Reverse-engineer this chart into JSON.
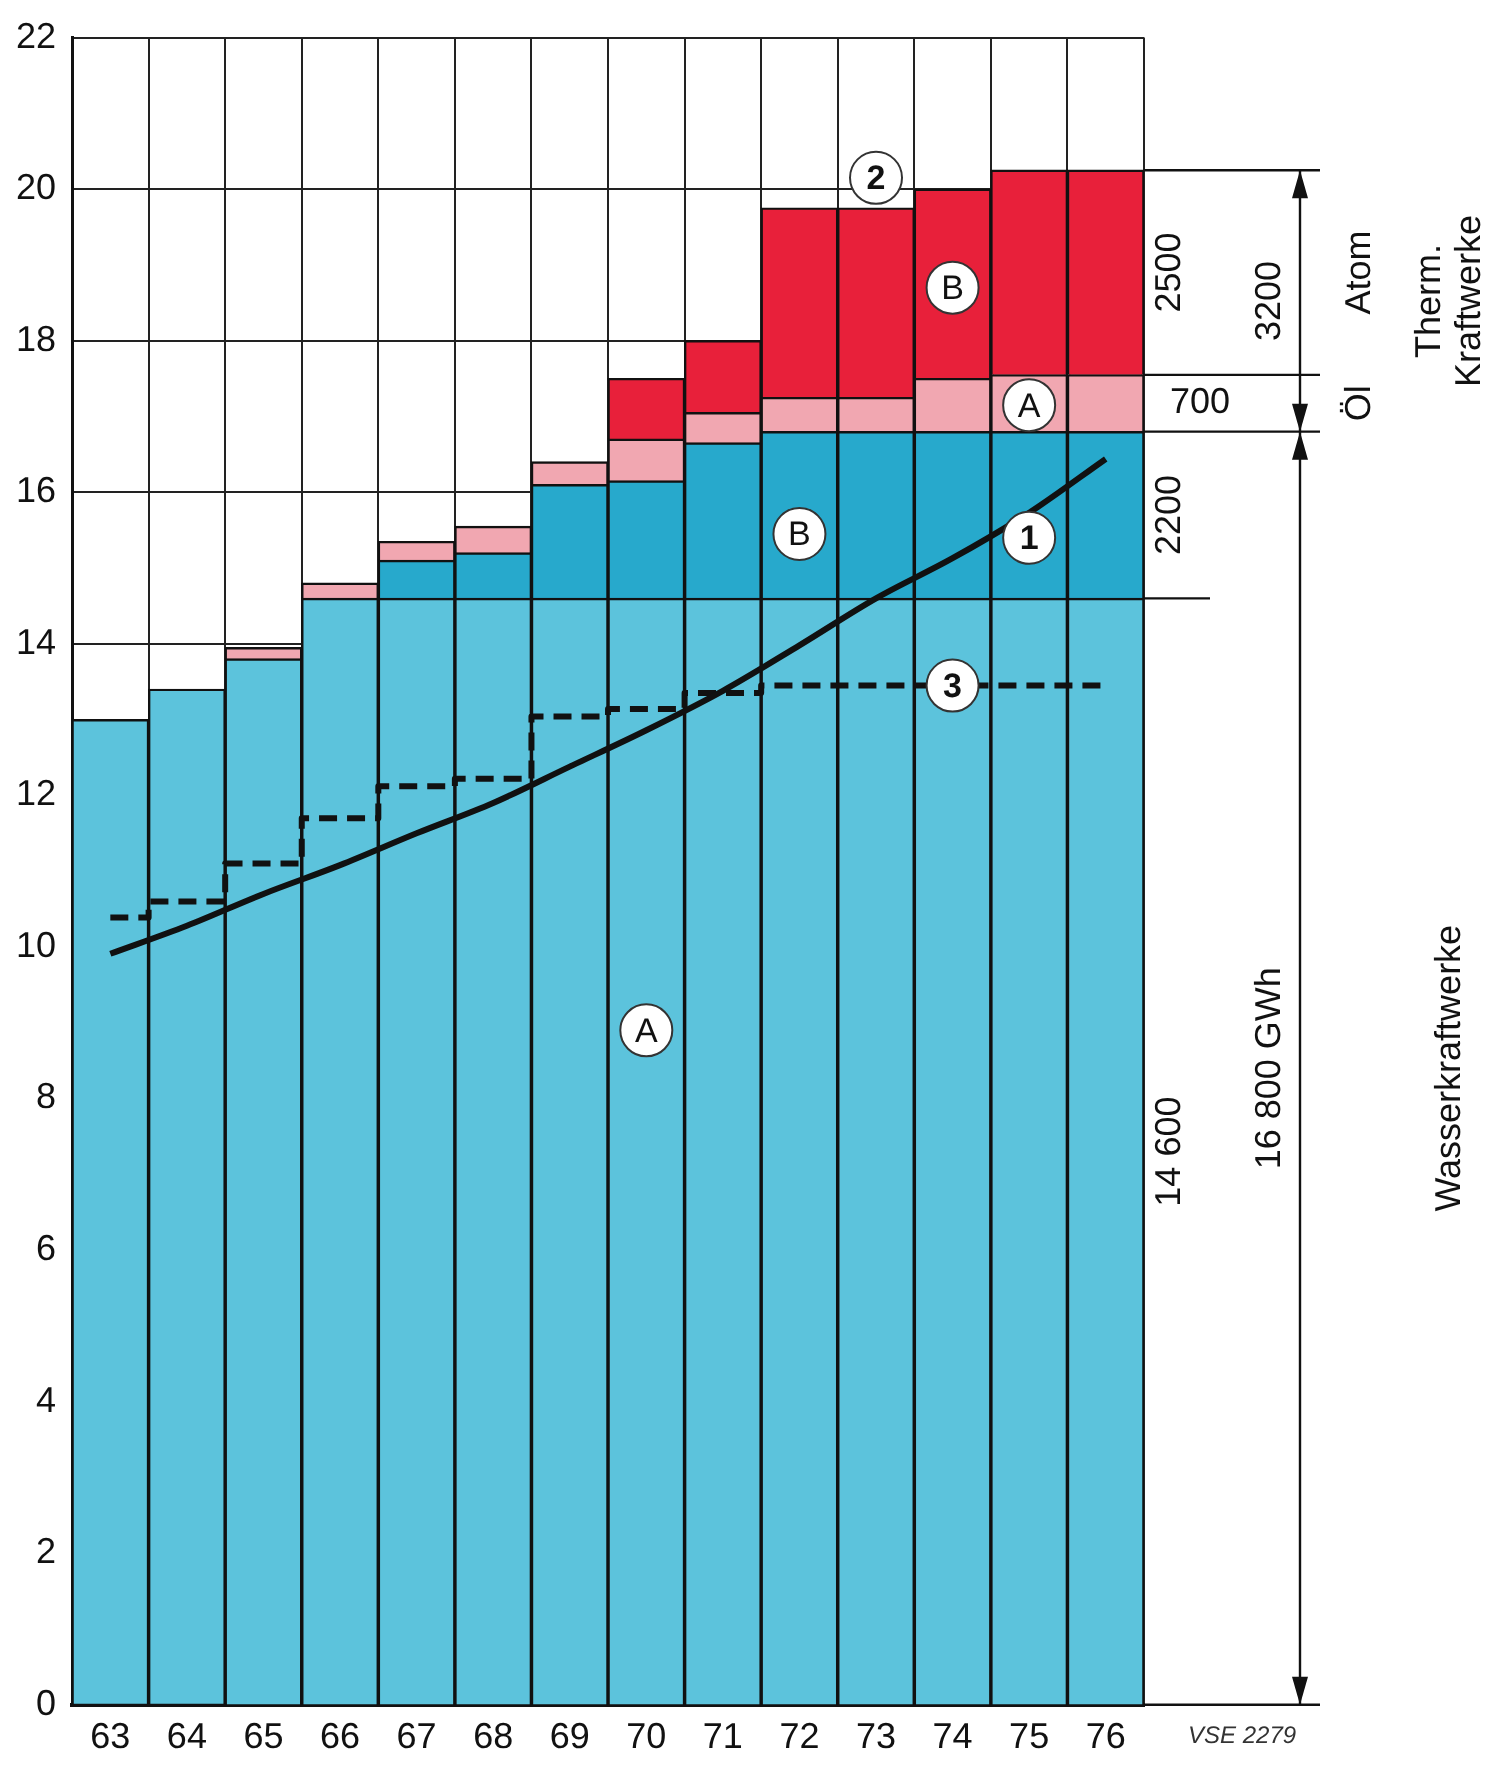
{
  "chart_data": {
    "type": "bar",
    "stacked": true,
    "grid": true,
    "legend": false,
    "marker": "none",
    "categories": [
      "63",
      "64",
      "65",
      "66",
      "67",
      "68",
      "69",
      "70",
      "71",
      "72",
      "73",
      "74",
      "75",
      "76"
    ],
    "ylim": [
      0,
      22
    ],
    "yticks": [
      0,
      2,
      4,
      6,
      8,
      10,
      12,
      14,
      16,
      18,
      20,
      22
    ],
    "series": [
      {
        "color": "#5cc3dc",
        "values": [
          13.0,
          13.4,
          13.8,
          14.6,
          14.6,
          14.6,
          14.6,
          14.6,
          14.6,
          14.6,
          14.6,
          14.6,
          14.6,
          14.6
        ]
      },
      {
        "color": "#27a9cc",
        "values": [
          null,
          null,
          null,
          null,
          0.5,
          0.6,
          1.5,
          1.55,
          2.05,
          2.2,
          2.2,
          2.2,
          2.2,
          2.2
        ]
      },
      {
        "color": "#f1a7b1",
        "values": [
          null,
          null,
          0.15,
          0.2,
          0.25,
          0.35,
          0.3,
          0.55,
          0.4,
          0.45,
          0.45,
          0.7,
          0.75,
          0.75
        ]
      },
      {
        "color": "#e8203a",
        "values": [
          null,
          null,
          null,
          null,
          null,
          null,
          null,
          0.8,
          0.95,
          2.5,
          2.5,
          2.5,
          2.7,
          2.7
        ]
      },
      {
        "type": "line",
        "color": "#111111",
        "line_style": "solid",
        "values": [
          9.91,
          10.28,
          10.7,
          11.08,
          11.5,
          11.9,
          12.38,
          12.86,
          13.38,
          13.98,
          14.6,
          15.13,
          15.73,
          16.44
        ]
      },
      {
        "type": "step",
        "color": "#111111",
        "line_style": "dashed",
        "values": [
          10.39,
          10.6,
          11.1,
          11.7,
          12.12,
          12.22,
          13.04,
          13.14,
          13.35,
          13.45,
          13.45,
          13.45,
          13.45,
          13.45
        ]
      }
    ],
    "annotations": [
      {
        "text": "1",
        "x": "75",
        "y": 15.4
      },
      {
        "text": "2",
        "x": "73",
        "y": 20.15
      },
      {
        "text": "3",
        "x": "74",
        "y": 13.45
      },
      {
        "text": "A",
        "x": "75",
        "y": 17.15
      },
      {
        "text": "B",
        "x": "74",
        "y": 18.7
      },
      {
        "text": "B",
        "x": "72",
        "y": 15.45
      },
      {
        "text": "A",
        "x": "70",
        "y": 8.9
      },
      "14 600",
      "2200",
      "700",
      "2500",
      "3200",
      "16 800 GWh",
      "Atom",
      "Öl",
      "Therm. Kraftwerke",
      "Wasserkraftwerke",
      "VSE 2279"
    ]
  }
}
